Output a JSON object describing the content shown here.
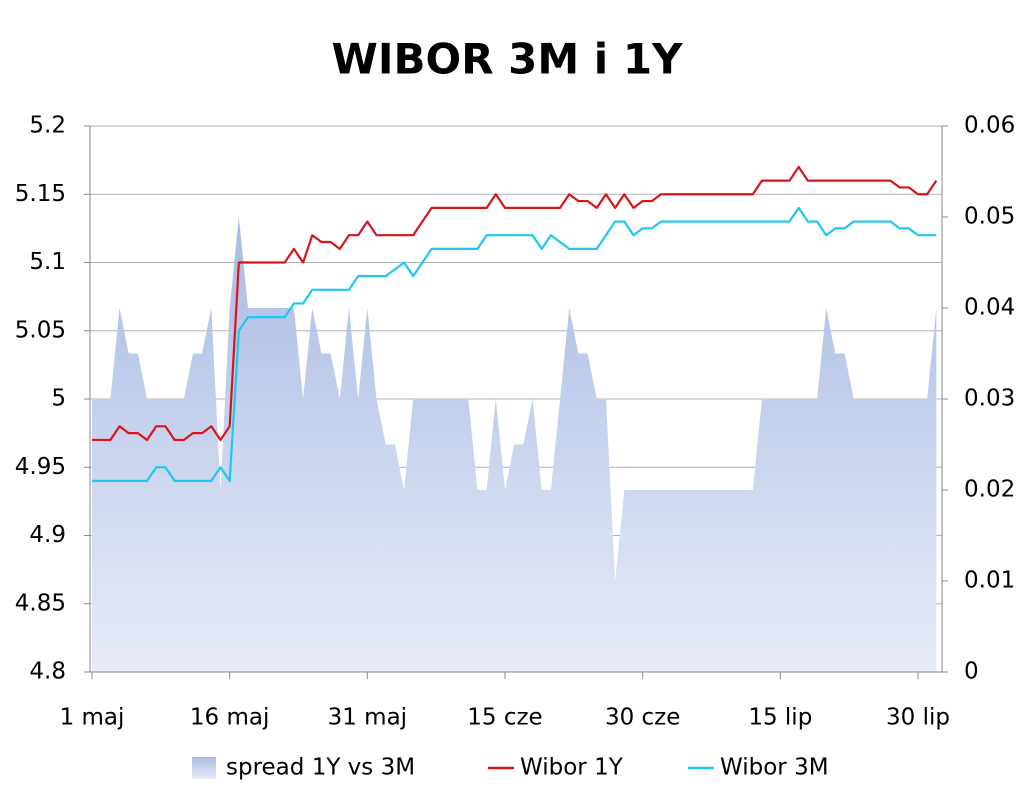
{
  "chart_data": {
    "type": "combo",
    "title": "WIBOR 3M i 1Y",
    "categories": [
      "1 maj",
      null,
      null,
      null,
      null,
      null,
      null,
      null,
      null,
      null,
      null,
      null,
      null,
      null,
      null,
      "16 maj",
      null,
      null,
      null,
      null,
      null,
      null,
      null,
      null,
      null,
      null,
      null,
      null,
      null,
      null,
      "31 maj",
      null,
      null,
      null,
      null,
      null,
      null,
      null,
      null,
      null,
      null,
      null,
      null,
      null,
      null,
      "15 cze",
      null,
      null,
      null,
      null,
      null,
      null,
      null,
      null,
      null,
      null,
      null,
      null,
      null,
      null,
      "30 cze",
      null,
      null,
      null,
      null,
      null,
      null,
      null,
      null,
      null,
      null,
      null,
      null,
      null,
      null,
      "15 lip",
      null,
      null,
      null,
      null,
      null,
      null,
      null,
      null,
      null,
      null,
      null,
      null,
      null,
      null,
      "30 lip",
      null,
      null
    ],
    "series": [
      {
        "name": "spread 1Y vs 3M",
        "type": "area",
        "axis": "y2",
        "color": "#b4c4e6",
        "values": [
          0.03,
          0.03,
          0.03,
          0.04,
          0.035,
          0.035,
          0.03,
          0.03,
          0.03,
          0.03,
          0.03,
          0.035,
          0.035,
          0.04,
          0.02,
          0.04,
          0.05,
          0.04,
          0.04,
          0.04,
          0.04,
          0.04,
          0.04,
          0.03,
          0.04,
          0.035,
          0.035,
          0.03,
          0.04,
          0.03,
          0.04,
          0.03,
          0.025,
          0.025,
          0.02,
          0.03,
          0.03,
          0.03,
          0.03,
          0.03,
          0.03,
          0.03,
          0.02,
          0.02,
          0.03,
          0.02,
          0.025,
          0.025,
          0.03,
          0.02,
          0.02,
          0.03,
          0.04,
          0.035,
          0.035,
          0.03,
          0.03,
          0.01,
          0.02,
          0.02,
          0.02,
          0.02,
          0.02,
          0.02,
          0.02,
          0.02,
          0.02,
          0.02,
          0.02,
          0.02,
          0.02,
          0.02,
          0.02,
          0.03,
          0.03,
          0.03,
          0.03,
          0.03,
          0.03,
          0.03,
          0.04,
          0.035,
          0.035,
          0.03,
          0.03,
          0.03,
          0.03,
          0.03,
          0.03,
          0.03,
          0.03,
          0.03,
          0.04
        ]
      },
      {
        "name": "Wibor 1Y",
        "type": "line",
        "color": "#d9141b",
        "values": [
          4.97,
          4.97,
          4.97,
          4.98,
          4.975,
          4.975,
          4.97,
          4.98,
          4.98,
          4.97,
          4.97,
          4.975,
          4.975,
          4.98,
          4.97,
          4.98,
          5.1,
          5.1,
          5.1,
          5.1,
          5.1,
          5.1,
          5.11,
          5.1,
          5.12,
          5.115,
          5.115,
          5.11,
          5.12,
          5.12,
          5.13,
          5.12,
          5.12,
          5.12,
          5.12,
          5.12,
          5.13,
          5.14,
          5.14,
          5.14,
          5.14,
          5.14,
          5.14,
          5.14,
          5.15,
          5.14,
          5.14,
          5.14,
          5.14,
          5.14,
          5.14,
          5.14,
          5.15,
          5.145,
          5.145,
          5.14,
          5.15,
          5.14,
          5.15,
          5.14,
          5.145,
          5.145,
          5.15,
          5.15,
          5.15,
          5.15,
          5.15,
          5.15,
          5.15,
          5.15,
          5.15,
          5.15,
          5.15,
          5.16,
          5.16,
          5.16,
          5.16,
          5.17,
          5.16,
          5.16,
          5.16,
          5.16,
          5.16,
          5.16,
          5.16,
          5.16,
          5.16,
          5.16,
          5.155,
          5.155,
          5.15,
          5.15,
          5.16
        ]
      },
      {
        "name": "Wibor 3M",
        "type": "line",
        "color": "#1ec8f0",
        "values": [
          4.94,
          4.94,
          4.94,
          4.94,
          4.94,
          4.94,
          4.94,
          4.95,
          4.95,
          4.94,
          4.94,
          4.94,
          4.94,
          4.94,
          4.95,
          4.94,
          5.05,
          5.06,
          5.06,
          5.06,
          5.06,
          5.06,
          5.07,
          5.07,
          5.08,
          5.08,
          5.08,
          5.08,
          5.08,
          5.09,
          5.09,
          5.09,
          5.09,
          5.095,
          5.1,
          5.09,
          5.1,
          5.11,
          5.11,
          5.11,
          5.11,
          5.11,
          5.11,
          5.12,
          5.12,
          5.12,
          5.12,
          5.12,
          5.12,
          5.11,
          5.12,
          5.115,
          5.11,
          5.11,
          5.11,
          5.11,
          5.12,
          5.13,
          5.13,
          5.12,
          5.125,
          5.125,
          5.13,
          5.13,
          5.13,
          5.13,
          5.13,
          5.13,
          5.13,
          5.13,
          5.13,
          5.13,
          5.13,
          5.13,
          5.13,
          5.13,
          5.13,
          5.14,
          5.13,
          5.13,
          5.12,
          5.125,
          5.125,
          5.13,
          5.13,
          5.13,
          5.13,
          5.13,
          5.125,
          5.125,
          5.12,
          5.12,
          5.12
        ]
      }
    ],
    "ylim": [
      4.8,
      5.2
    ],
    "yticks": [
      4.8,
      4.85,
      4.9,
      4.95,
      5,
      5.05,
      5.1,
      5.15,
      5.2
    ],
    "y2lim": [
      0,
      0.06
    ],
    "y2ticks": [
      0,
      0.01,
      0.02,
      0.03,
      0.04,
      0.05,
      0.06
    ],
    "grid": true,
    "legend": "bottom"
  }
}
